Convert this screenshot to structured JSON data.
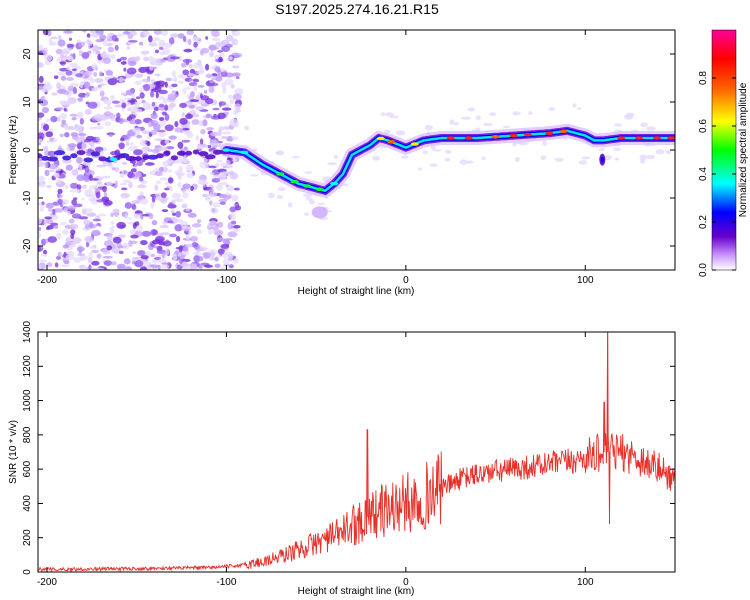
{
  "title": "S197.2025.274.16.21.R15",
  "chart_data": [
    {
      "type": "heatmap",
      "name": "spectrogram",
      "xlabel": "Height of straight line (km)",
      "ylabel": "Frequency (Hz)",
      "xlim": [
        -205,
        150
      ],
      "ylim": [
        -25,
        25
      ],
      "x_ticks": [
        -200,
        -100,
        0,
        100
      ],
      "y_ticks": [
        -20,
        -10,
        0,
        10,
        20
      ],
      "colorbar": {
        "label": "Normalized spectral amplitude",
        "range": [
          0,
          1
        ],
        "ticks": [
          "0.0",
          "0.2",
          "0.4",
          "0.6",
          "0.8"
        ],
        "colors": [
          "#ffffff",
          "#cc99ff",
          "#6600cc",
          "#0000ff",
          "#00ffff",
          "#00ff00",
          "#ffff00",
          "#ff6600",
          "#ff0000",
          "#ff0099"
        ]
      },
      "ridge_frequency": {
        "x": [
          -205,
          -180,
          -160,
          -140,
          -120,
          -100,
          -90,
          -80,
          -70,
          -60,
          -50,
          -45,
          -40,
          -35,
          -30,
          -25,
          -20,
          -15,
          -10,
          0,
          10,
          20,
          40,
          60,
          80,
          90,
          100,
          105,
          110,
          120,
          150
        ],
        "y": [
          -1,
          -1.5,
          -2,
          -1,
          -1.5,
          0,
          -0.5,
          -3,
          -5,
          -7,
          -8,
          -8.5,
          -7,
          -5,
          -1,
          0,
          1,
          2.5,
          2,
          0.5,
          2,
          2.5,
          2.5,
          3,
          3.5,
          4,
          3,
          2,
          2,
          2.5,
          2.5
        ]
      }
    },
    {
      "type": "line",
      "name": "snr",
      "xlabel": "Height of straight line (km)",
      "ylabel": "SNR (10 * v/v)",
      "xlim": [
        -205,
        150
      ],
      "ylim": [
        0,
        1400
      ],
      "x_ticks": [
        -200,
        -100,
        0,
        100
      ],
      "y_ticks": [
        0,
        200,
        400,
        600,
        800,
        1000,
        1200,
        1400
      ],
      "color": "#e8302a",
      "trend": {
        "x": [
          -205,
          -150,
          -110,
          -90,
          -80,
          -70,
          -60,
          -50,
          -40,
          -30,
          -20,
          -10,
          0,
          10,
          20,
          30,
          40,
          60,
          80,
          95,
          100,
          105,
          110,
          120,
          130,
          140,
          150
        ],
        "y": [
          15,
          20,
          25,
          40,
          60,
          90,
          130,
          170,
          210,
          270,
          330,
          370,
          400,
          440,
          490,
          540,
          570,
          600,
          630,
          650,
          670,
          690,
          700,
          700,
          660,
          610,
          540
        ]
      },
      "spikes": [
        {
          "x": -21.5,
          "y": 830
        },
        {
          "x": 110.5,
          "y": 990
        },
        {
          "x": 112.5,
          "y": 1400
        },
        {
          "x": 113.5,
          "y": 280
        }
      ]
    }
  ]
}
